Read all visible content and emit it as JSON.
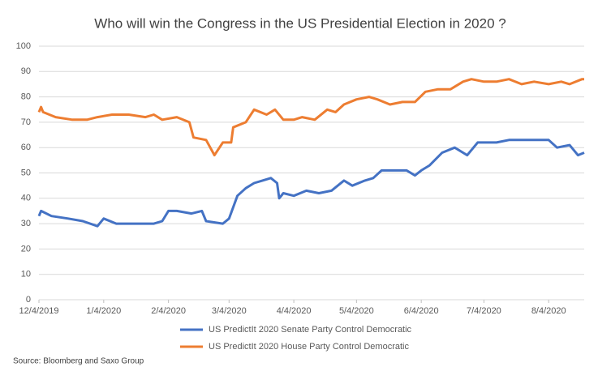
{
  "chart_data": {
    "type": "line",
    "title": "Who will win the Congress in the US Presidential Election in 2020 ?",
    "source": "Source: Bloomberg and Saxo Group",
    "xlim": [
      "2019-12-04",
      "2020-08-21"
    ],
    "xticks": [
      {
        "value": "2019-12-04",
        "label": "12/4/2019"
      },
      {
        "value": "2020-01-04",
        "label": "1/4/2020"
      },
      {
        "value": "2020-02-04",
        "label": "2/4/2020"
      },
      {
        "value": "2020-03-04",
        "label": "3/4/2020"
      },
      {
        "value": "2020-04-04",
        "label": "4/4/2020"
      },
      {
        "value": "2020-05-04",
        "label": "5/4/2020"
      },
      {
        "value": "2020-06-04",
        "label": "6/4/2020"
      },
      {
        "value": "2020-07-04",
        "label": "7/4/2020"
      },
      {
        "value": "2020-08-04",
        "label": "8/4/2020"
      }
    ],
    "ylim": [
      0,
      100
    ],
    "yticks": [
      0,
      10,
      20,
      30,
      40,
      50,
      60,
      70,
      80,
      90,
      100
    ],
    "grid": true,
    "series": [
      {
        "name": "US PredictIt 2020 Senate Party Control Democratic",
        "color": "#4472c4",
        "x": [
          "2019-12-04",
          "2019-12-05",
          "2019-12-10",
          "2019-12-18",
          "2019-12-25",
          "2020-01-01",
          "2020-01-04",
          "2020-01-10",
          "2020-01-20",
          "2020-01-28",
          "2020-02-01",
          "2020-02-04",
          "2020-02-08",
          "2020-02-15",
          "2020-02-20",
          "2020-02-22",
          "2020-03-01",
          "2020-03-04",
          "2020-03-08",
          "2020-03-12",
          "2020-03-16",
          "2020-03-20",
          "2020-03-24",
          "2020-03-27",
          "2020-03-28",
          "2020-03-30",
          "2020-04-04",
          "2020-04-10",
          "2020-04-16",
          "2020-04-22",
          "2020-04-28",
          "2020-05-02",
          "2020-05-08",
          "2020-05-12",
          "2020-05-16",
          "2020-05-22",
          "2020-05-28",
          "2020-06-01",
          "2020-06-04",
          "2020-06-08",
          "2020-06-14",
          "2020-06-20",
          "2020-06-26",
          "2020-07-01",
          "2020-07-10",
          "2020-07-16",
          "2020-07-22",
          "2020-07-28",
          "2020-08-04",
          "2020-08-08",
          "2020-08-14",
          "2020-08-18",
          "2020-08-21"
        ],
        "values": [
          33,
          35,
          33,
          32,
          31,
          29,
          32,
          30,
          30,
          30,
          31,
          35,
          35,
          34,
          35,
          31,
          30,
          32,
          41,
          44,
          46,
          47,
          48,
          46,
          40,
          42,
          41,
          43,
          42,
          43,
          47,
          45,
          47,
          48,
          51,
          51,
          51,
          49,
          51,
          53,
          58,
          60,
          57,
          62,
          62,
          63,
          63,
          63,
          63,
          60,
          61,
          57,
          58
        ]
      },
      {
        "name": "US PredictIt 2020 House Party Control Democratic",
        "color": "#ed7d31",
        "x": [
          "2019-12-04",
          "2019-12-05",
          "2019-12-06",
          "2019-12-12",
          "2019-12-20",
          "2019-12-27",
          "2020-01-01",
          "2020-01-08",
          "2020-01-16",
          "2020-01-24",
          "2020-01-28",
          "2020-02-01",
          "2020-02-08",
          "2020-02-14",
          "2020-02-16",
          "2020-02-22",
          "2020-02-26",
          "2020-03-01",
          "2020-03-05",
          "2020-03-06",
          "2020-03-12",
          "2020-03-16",
          "2020-03-22",
          "2020-03-26",
          "2020-03-30",
          "2020-04-04",
          "2020-04-08",
          "2020-04-14",
          "2020-04-20",
          "2020-04-24",
          "2020-04-28",
          "2020-05-04",
          "2020-05-10",
          "2020-05-14",
          "2020-05-20",
          "2020-05-26",
          "2020-06-01",
          "2020-06-06",
          "2020-06-12",
          "2020-06-18",
          "2020-06-24",
          "2020-06-28",
          "2020-07-04",
          "2020-07-10",
          "2020-07-16",
          "2020-07-22",
          "2020-07-28",
          "2020-08-04",
          "2020-08-10",
          "2020-08-14",
          "2020-08-20",
          "2020-08-21"
        ],
        "values": [
          74,
          76,
          74,
          72,
          71,
          71,
          72,
          73,
          73,
          72,
          73,
          71,
          72,
          70,
          64,
          63,
          57,
          62,
          62,
          68,
          70,
          75,
          73,
          75,
          71,
          71,
          72,
          71,
          75,
          74,
          77,
          79,
          80,
          79,
          77,
          78,
          78,
          82,
          83,
          83,
          86,
          87,
          86,
          86,
          87,
          85,
          86,
          85,
          86,
          85,
          87,
          87
        ]
      }
    ]
  }
}
